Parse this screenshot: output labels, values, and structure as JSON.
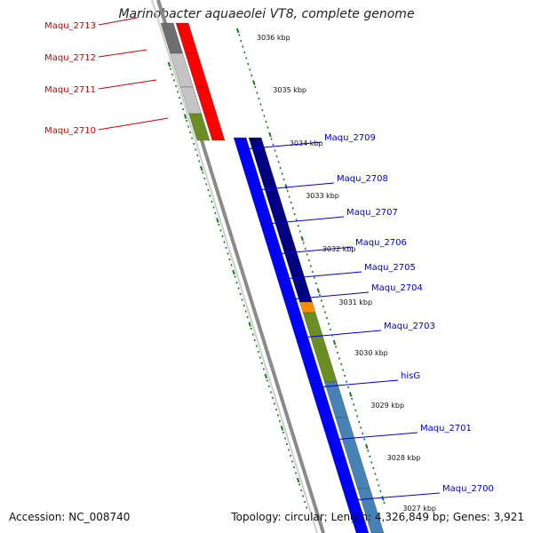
{
  "title": "Marinobacter aquaeolei VT8, complete genome",
  "footer": {
    "accession": "Accession: NC_008740",
    "summary": "Topology: circular; Length: 4,326,849 bp; Genes: 3,921"
  },
  "colors": {
    "backbone": "#8a8a8a",
    "forward_label": "#0000cc",
    "reverse_label": "#cc0000",
    "tick": "#1a7a1a"
  },
  "kbp_labels": [
    "3036 kbp",
    "3035 kbp",
    "3034 kbp",
    "3033 kbp",
    "3032 kbp",
    "3031 kbp",
    "3030 kbp",
    "3029 kbp",
    "3028 kbp",
    "3027 kbp"
  ],
  "genes_reverse": [
    {
      "label": "Maqu_2713",
      "inner_color": "#6e6e6e",
      "outer_color": "#ff0000"
    },
    {
      "label": "Maqu_2712",
      "inner_color": "#c4c4c4",
      "outer_color": "#ff0000"
    },
    {
      "label": "Maqu_2711",
      "inner_color": "#c4c4c4",
      "outer_color": "#ff0000"
    },
    {
      "label": "Maqu_2710",
      "inner_color": "#6b8e23",
      "outer_color": "#ff0000"
    }
  ],
  "genes_forward": [
    {
      "label": "Maqu_2709",
      "inner_color": "#0000ff",
      "outer_color": "#000080"
    },
    {
      "label": "Maqu_2708",
      "inner_color": "#0000ff",
      "outer_color": "#000080"
    },
    {
      "label": "Maqu_2707",
      "inner_color": "#0000ff",
      "outer_color": "#000080"
    },
    {
      "label": "Maqu_2706",
      "inner_color": "#0000ff",
      "outer_color": "#000080"
    },
    {
      "label": "Maqu_2705",
      "inner_color": "#0000ff",
      "outer_color": "#000080"
    },
    {
      "label": "Maqu_2704",
      "inner_color": "#0000ff",
      "outer_color": "#ff8c00"
    },
    {
      "label": "Maqu_2703",
      "inner_color": "#0000ff",
      "outer_color": "#6b8e23"
    },
    {
      "label": "hisG",
      "inner_color": "#0000ff",
      "outer_color": "#4682b4"
    },
    {
      "label": "Maqu_2701",
      "inner_color": "#0000ff",
      "outer_color": "#4682b4"
    },
    {
      "label": "Maqu_2700",
      "inner_color": "#0000ff",
      "outer_color": "#4682b4"
    }
  ]
}
